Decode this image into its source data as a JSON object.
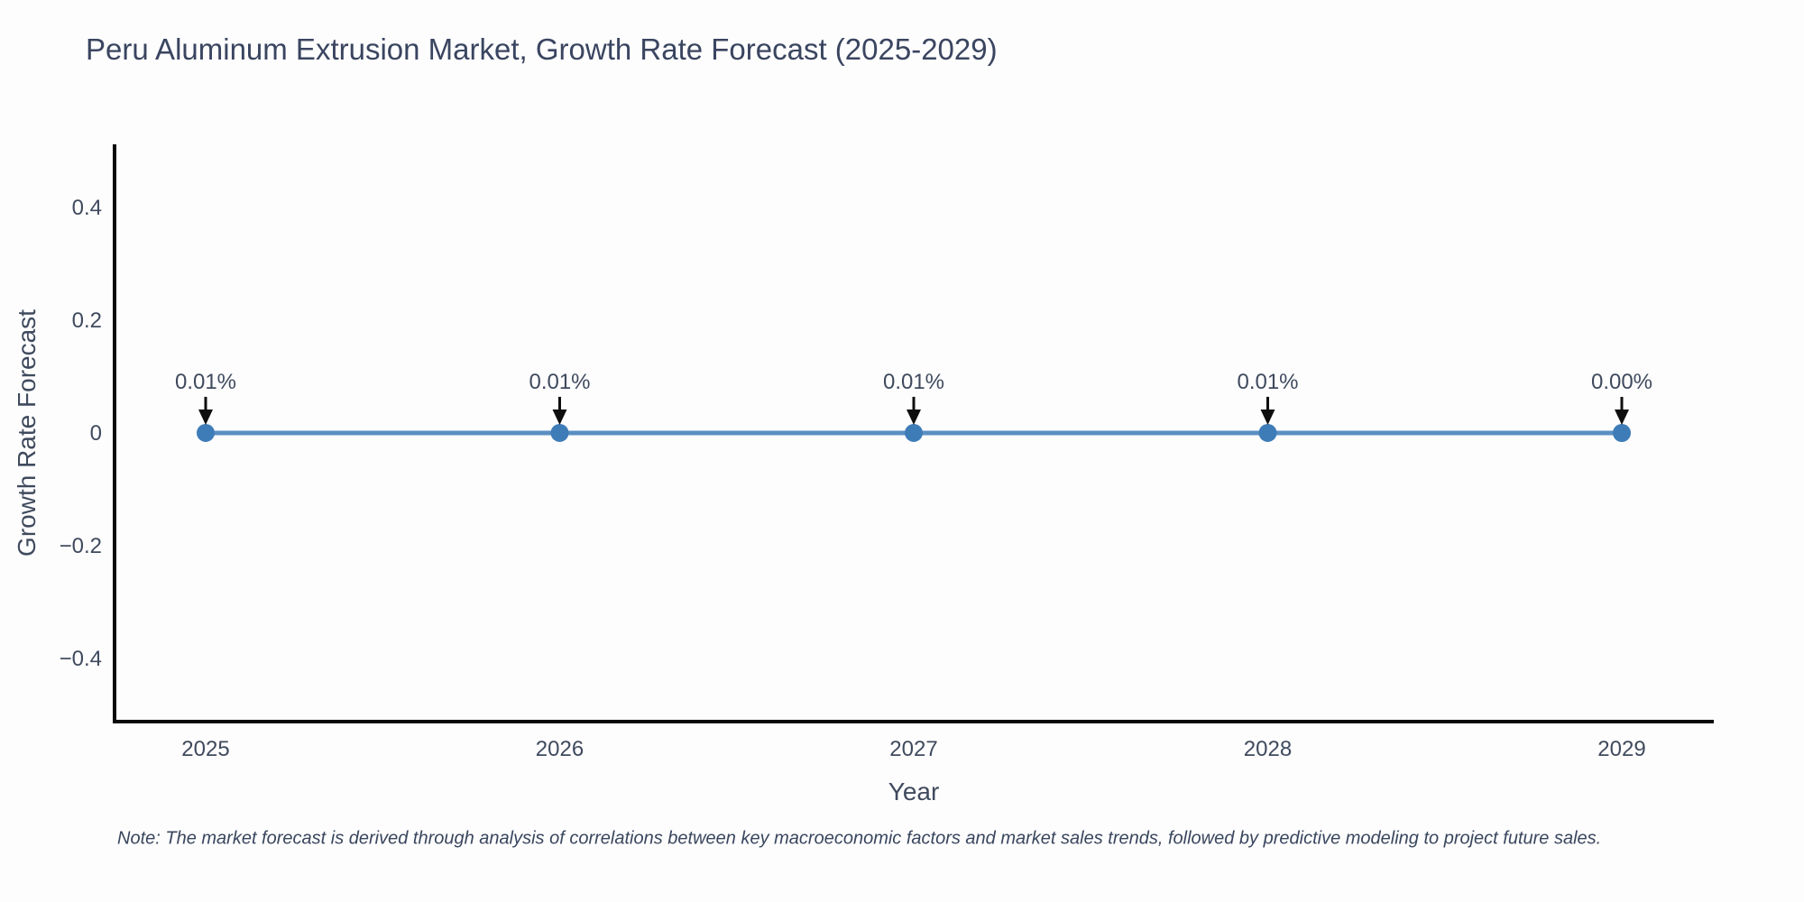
{
  "page": {
    "note": "Note: The market forecast is derived through analysis of correlations between key macroeconomic factors and market sales trends, followed by predictive modeling to project future sales."
  },
  "chart_data": {
    "type": "line",
    "title": "Peru Aluminum Extrusion Market, Growth Rate Forecast (2025-2029)",
    "xlabel": "Year",
    "ylabel": "Growth Rate Forecast",
    "categories": [
      "2025",
      "2026",
      "2027",
      "2028",
      "2029"
    ],
    "series": [
      {
        "name": "Growth Rate Forecast",
        "values_percent": [
          0.01,
          0.01,
          0.01,
          0.01,
          0.0
        ],
        "point_labels": [
          "0.01%",
          "0.01%",
          "0.01%",
          "0.01%",
          "0.00%"
        ]
      }
    ],
    "yticks": [
      0.4,
      0.2,
      0,
      -0.2,
      -0.4
    ],
    "ytick_labels": [
      "0.4",
      "0.2",
      "0",
      "−0.2",
      "−0.4"
    ],
    "ylim": [
      -0.512,
      0.512
    ],
    "grid": false,
    "legend_position": "none",
    "annotations_have_arrows": true,
    "colors": {
      "line": "#5a8fc2",
      "marker": "#3e7cb8",
      "axis": "#0a0a0a",
      "text": "#3f4a5e",
      "title": "#3a4560",
      "arrow": "#0e0e0e",
      "background": "#fdfdfd"
    }
  }
}
